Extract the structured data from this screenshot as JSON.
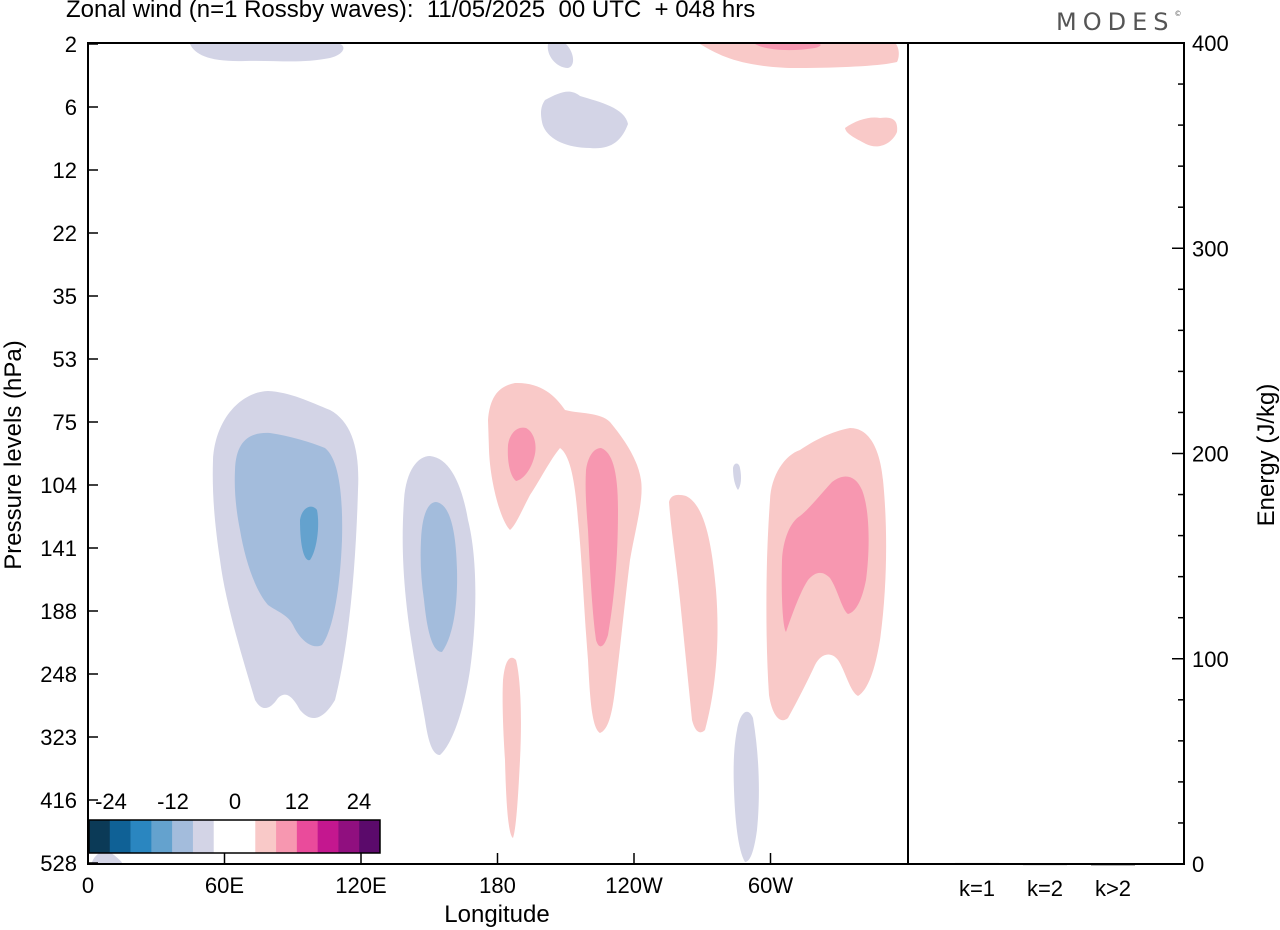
{
  "chart_data": {
    "type": "heatmap",
    "title": "Zonal wind (n=1 Rossby waves):  11/05/2025  00 UTC  + 048 hrs",
    "logo": "MODES",
    "xlabel": "Longitude",
    "ylabel": "Pressure levels (hPa)",
    "x_ticks": [
      "0",
      "60E",
      "120E",
      "180",
      "120W",
      "60W"
    ],
    "y_ticks": [
      "2",
      "6",
      "12",
      "22",
      "35",
      "53",
      "75",
      "104",
      "141",
      "188",
      "248",
      "323",
      "416",
      "528"
    ],
    "colorbar": {
      "tick_labels": [
        "-24",
        "-12",
        "0",
        "12",
        "24"
      ],
      "colors": [
        "#0b3a57",
        "#0f6196",
        "#2a86c0",
        "#64a2ce",
        "#a3bcdc",
        "#d3d4e6",
        "#ffffff",
        "#ffffff",
        "#f9c9c8",
        "#f797b0",
        "#ea4b9b",
        "#c4178f",
        "#900f7f",
        "#5b0a6b"
      ]
    },
    "color_levels": {
      "neg_light": "#d3d4e6",
      "neg_mid": "#a3bcdc",
      "neg_strong": "#64a2ce",
      "pos_light": "#f9c9c8",
      "pos_mid": "#f797b0"
    },
    "energy_panel": {
      "ylabel": "Energy (J/kg)",
      "ylim": [
        0,
        400
      ],
      "y_ticks": [
        "0",
        "100",
        "200",
        "300",
        "400"
      ],
      "categories": [
        "k=1",
        "k=2",
        "k>2"
      ],
      "values": [
        0.5,
        0.2,
        0.1
      ]
    }
  }
}
